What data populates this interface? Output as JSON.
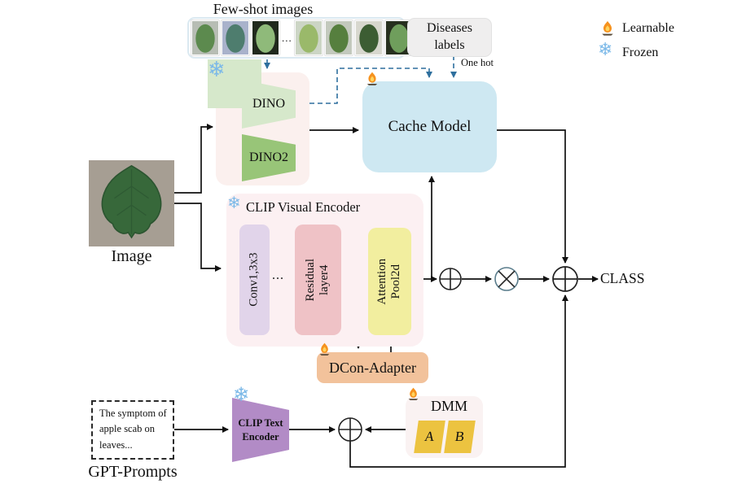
{
  "few_shot": {
    "title": "Few-shot images",
    "ellipsis": "...",
    "thumbs": [
      {
        "bg": "#b7bdb4",
        "leaf": "#5c8a4e"
      },
      {
        "bg": "#a9b2cb",
        "leaf": "#4e7d6e"
      },
      {
        "bg": "#20291d",
        "leaf": "#8fba7a"
      },
      {
        "bg": "#ccd5c5",
        "leaf": "#9ab96a"
      },
      {
        "bg": "#c3c9bd",
        "leaf": "#567f3e"
      },
      {
        "bg": "#d7d7ce",
        "leaf": "#3c5d33"
      },
      {
        "bg": "#27301f",
        "leaf": "#6f9e5c"
      }
    ]
  },
  "diseases": {
    "line1": "Diseases",
    "line2": "labels",
    "one_hot": "One hot"
  },
  "legend": {
    "learnable_label": "Learnable",
    "frozen_label": "Frozen"
  },
  "icons": {
    "snowflake": "❄"
  },
  "image_input": {
    "label": "Image"
  },
  "dino_block": {
    "dino": "DINO",
    "dino2": "DINO2"
  },
  "cache_model": {
    "label": "Cache Model"
  },
  "clip_visual": {
    "title": "CLIP Visual Encoder",
    "conv": "Conv1,3x3",
    "dots": "...",
    "residual_line1": "Residual",
    "residual_line2": "layer4",
    "attention_line1": "Attention",
    "attention_line2": "Pool2d"
  },
  "dcon_adapter": {
    "label": "DCon-Adapter"
  },
  "dmm": {
    "label": "DMM",
    "a": "A",
    "b": "B"
  },
  "clip_text": {
    "line1": "CLIP Text",
    "line2": "Encoder"
  },
  "gpt_prompts": {
    "text_line1": "The symptom of",
    "text_line2": "apple scab on",
    "text_line3": "leaves...",
    "label": "GPT-Prompts"
  },
  "output": {
    "label": "CLASS"
  },
  "colors": {
    "cache_blue": "#cee8f2",
    "container_pink": "#fcf0f2",
    "dino_light_green": "#d6e8cb",
    "dino2_green": "#98c578",
    "conv_purple": "#e1d4ea",
    "residual_pink": "#efc2c6",
    "attention_yellow": "#f2ee9f",
    "adapter_orange": "#f2c29b",
    "dmm_gold": "#ecc340",
    "clip_text_purple": "#b28bc6",
    "dashed_blue": "#2e6f9e",
    "snowflake_blue": "#7cb9e8",
    "flame_orange": "#f6921e"
  }
}
